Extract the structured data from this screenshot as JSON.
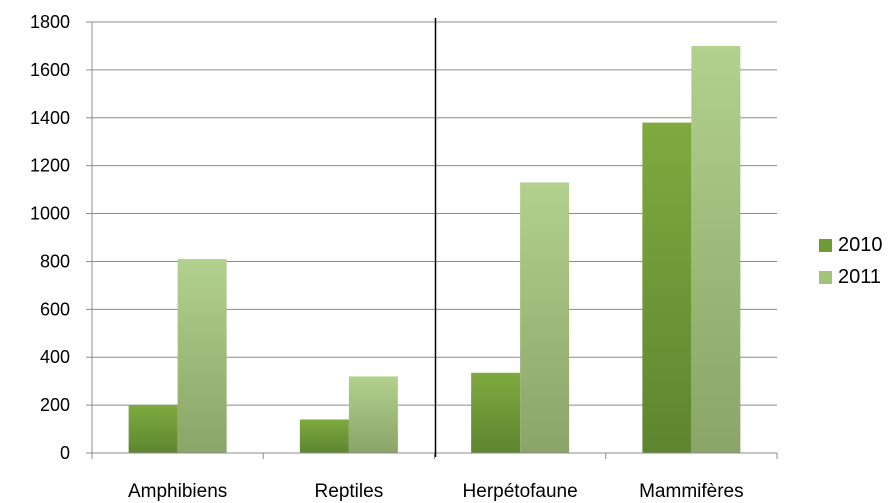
{
  "chart_data": {
    "type": "bar",
    "title": "",
    "xlabel": "",
    "ylabel": "",
    "categories": [
      "Amphibiens",
      "Reptiles",
      "Herpétofaune",
      "Mammifères"
    ],
    "series": [
      {
        "name": "2010",
        "values": [
          200,
          140,
          335,
          1380
        ],
        "color": "#6f9a35"
      },
      {
        "name": "2011",
        "values": [
          810,
          320,
          1130,
          1700
        ],
        "color": "#a3c27a"
      }
    ],
    "ylim": [
      0,
      1800
    ],
    "yticks": [
      0,
      200,
      400,
      600,
      800,
      1000,
      1200,
      1400,
      1600,
      1800
    ],
    "grid": true,
    "legend_position": "right",
    "separator_between": [
      "Reptiles",
      "Herpétofaune"
    ]
  }
}
